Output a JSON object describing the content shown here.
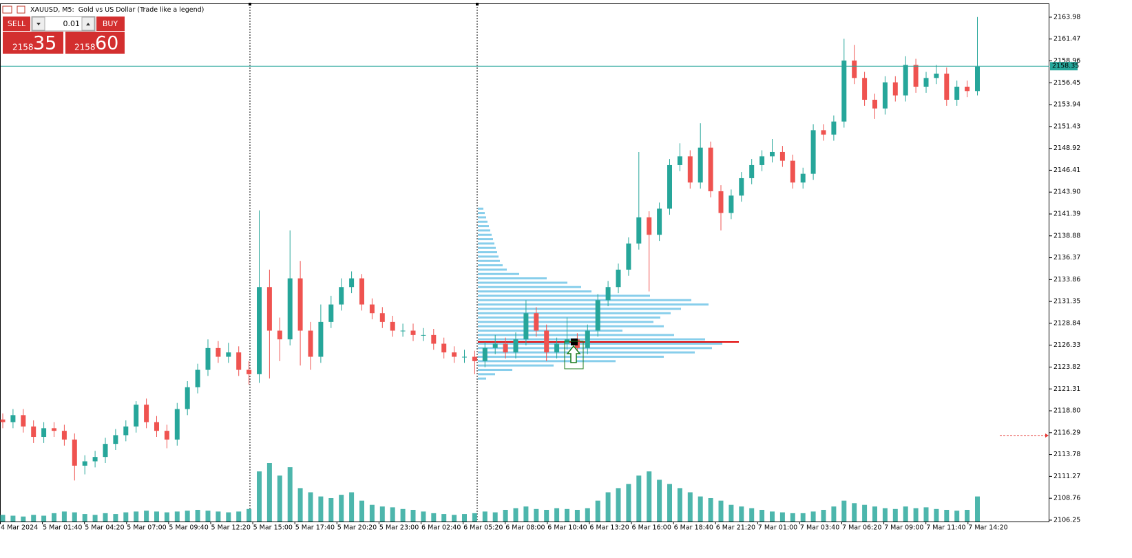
{
  "chart_data": {
    "type": "candlestick",
    "title": "XAUUSD, M5:  Gold vs US Dollar (Trade like a legend)",
    "trade_panel": {
      "sell": "SELL",
      "buy": "BUY",
      "lot": "0.01",
      "bid": {
        "main": "2158",
        "pips": "35"
      },
      "ask": {
        "main": "2158",
        "pips": "60"
      }
    },
    "categories": [
      "4 Mar 2024",
      "5 Mar 01:40",
      "5 Mar 04:20",
      "5 Mar 07:00",
      "5 Mar 09:40",
      "5 Mar 12:20",
      "5 Mar 15:00",
      "5 Mar 17:40",
      "5 Mar 20:20",
      "5 Mar 23:00",
      "6 Mar 02:40",
      "6 Mar 05:20",
      "6 Mar 08:00",
      "6 Mar 10:40",
      "6 Mar 13:20",
      "6 Mar 16:00",
      "6 Mar 18:40",
      "6 Mar 21:20",
      "7 Mar 01:00",
      "7 Mar 03:40",
      "7 Mar 06:20",
      "7 Mar 09:00",
      "7 Mar 11:40",
      "7 Mar 14:20"
    ],
    "up_color": "#26a69a",
    "down_color": "#ef5350",
    "volume_color": "#4db6ac",
    "ylim": [
      2105.93,
      2165.95
    ],
    "yticks": [
      2163.98,
      2161.47,
      2158.96,
      2156.45,
      2153.94,
      2151.43,
      2148.92,
      2146.41,
      {
        "value": 2143.9,
        "label": "2143.90"
      },
      2141.39,
      2138.88,
      2136.37,
      2133.86,
      2131.35,
      2128.84,
      2126.33,
      2123.82,
      2121.31,
      {
        "value": 2118.8,
        "label": "2118.80"
      },
      2116.29,
      2113.78,
      2111.27,
      2108.76,
      2106.25
    ],
    "current_price": 2158.35,
    "open": [
      2117.8,
      2117.5,
      2118.3,
      2117,
      2115.8,
      2116.8,
      2116.5,
      2115.5,
      2112.5,
      2113,
      2113.5,
      2115,
      2116,
      2117,
      2119.5,
      2117.5,
      2116.5,
      2115.5,
      2119,
      2121.5,
      2123.5,
      2126,
      2125,
      2125.5,
      2123.5,
      2123,
      2133,
      2128,
      2127,
      2134,
      2128,
      2125,
      2129,
      2131,
      2133,
      2134,
      2131,
      2130,
      2129,
      2128,
      2128,
      2127.5,
      2127.5,
      2126.5,
      2125.5,
      2125,
      2125,
      2124.5,
      2126,
      2126.5,
      2125.5,
      2127,
      2130,
      2128,
      2125.5,
      2126.5,
      2127,
      2126,
      2128,
      2131.5,
      2133,
      2135,
      2138,
      2141,
      2139,
      2142,
      2147,
      2148,
      2145,
      2149,
      2144,
      2141.5,
      2143.5,
      2145.5,
      2147,
      2148,
      2148.5,
      2147.5,
      2145,
      2146,
      2151,
      2150.5,
      2152,
      2159,
      2157,
      2154.5,
      2153.5,
      2156.5,
      2155,
      2158.5,
      2156,
      2157,
      2157.5,
      2154.5,
      2156,
      2155.5
    ],
    "high": [
      2118.5,
      2119,
      2119,
      2117.7,
      2117.5,
      2117.5,
      2117.2,
      2116.2,
      2113.7,
      2114.2,
      2115.7,
      2116.7,
      2117.7,
      2119.9,
      2120.2,
      2118.2,
      2117.2,
      2119.7,
      2122.2,
      2124.2,
      2127,
      2126.8,
      2126.6,
      2126.2,
      2124.5,
      2141.8,
      2135,
      2129.5,
      2139.5,
      2136,
      2129,
      2131,
      2132,
      2134,
      2134.8,
      2134.5,
      2131.7,
      2130.7,
      2129.7,
      2128.8,
      2128.8,
      2128.3,
      2128.2,
      2127.2,
      2126.2,
      2125.8,
      2125.7,
      2126.7,
      2127.5,
      2127.2,
      2127.8,
      2131.5,
      2130.7,
      2128.7,
      2127.2,
      2129.5,
      2127.7,
      2128.7,
      2132.2,
      2133.7,
      2135.7,
      2138.7,
      2148.5,
      2141.7,
      2142.7,
      2147.7,
      2149.5,
      2148.7,
      2151.8,
      2149.7,
      2144.7,
      2144.2,
      2146.2,
      2147.7,
      2148.7,
      2150,
      2149.2,
      2148.2,
      2146.7,
      2151.7,
      2151.7,
      2152.7,
      2161.5,
      2160.8,
      2157.7,
      2155.2,
      2157.2,
      2157.2,
      2159.5,
      2159.2,
      2157.7,
      2158.5,
      2158.2,
      2156.7,
      2156.7,
      2164
    ],
    "low": [
      2116.8,
      2116.8,
      2116.3,
      2115.1,
      2115.1,
      2115.8,
      2114.8,
      2110.8,
      2111.5,
      2112.3,
      2112.8,
      2114.3,
      2115.3,
      2116.3,
      2116.8,
      2115.8,
      2114.5,
      2114.8,
      2118.3,
      2120.8,
      2122.8,
      2124.3,
      2124.3,
      2122.8,
      2121.8,
      2122,
      2122.5,
      2124.5,
      2126.3,
      2124,
      2123.5,
      2124.3,
      2128.3,
      2130.3,
      2132.3,
      2130.3,
      2129.3,
      2128.3,
      2127.3,
      2127.3,
      2126.8,
      2126.8,
      2125.8,
      2124.8,
      2124.3,
      2124.3,
      2123,
      2123.8,
      2125.3,
      2124.8,
      2124.8,
      2126.3,
      2127.3,
      2124.5,
      2124.8,
      2125.8,
      2125.3,
      2125.3,
      2127.3,
      2130.8,
      2132.3,
      2134.3,
      2137.3,
      2132.5,
      2138.3,
      2141.3,
      2146.3,
      2144.3,
      2144.3,
      2143.3,
      2139.5,
      2140.8,
      2142.8,
      2144.8,
      2146.3,
      2147.3,
      2146.8,
      2144.3,
      2144.3,
      2145.3,
      2149.8,
      2149.8,
      2151.3,
      2156.3,
      2153.8,
      2152.3,
      2152.8,
      2154.3,
      2154.3,
      2155.3,
      2155.3,
      2156.3,
      2153.8,
      2153.8,
      2154.8,
      2155
    ],
    "close": [
      2117.5,
      2118.3,
      2117,
      2115.8,
      2116.8,
      2116.5,
      2115.5,
      2112.5,
      2113,
      2113.5,
      2115,
      2116,
      2117,
      2119.5,
      2117.5,
      2116.5,
      2115.5,
      2119,
      2121.5,
      2123.5,
      2126,
      2125,
      2125.5,
      2123.5,
      2123,
      2133,
      2128,
      2127,
      2134,
      2128,
      2125,
      2129,
      2131,
      2133,
      2134,
      2131,
      2130,
      2129,
      2128,
      2128,
      2127.5,
      2127.5,
      2126.5,
      2125.5,
      2125,
      2125,
      2124.5,
      2126,
      2126.5,
      2125.5,
      2127,
      2130,
      2128,
      2125.5,
      2126.5,
      2127,
      2126,
      2128,
      2131.5,
      2133,
      2135,
      2138,
      2141,
      2139,
      2142,
      2147,
      2148,
      2145,
      2149,
      2144,
      2141.5,
      2143.5,
      2145.5,
      2147,
      2148,
      2148.5,
      2147.5,
      2145,
      2146,
      2151,
      2150.5,
      2152,
      2159,
      2157,
      2154.5,
      2153.5,
      2156.5,
      2155,
      2158.5,
      2156,
      2157,
      2157.5,
      2154.5,
      2156,
      2155.5,
      2158.3
    ],
    "volume": [
      8,
      7,
      6,
      8,
      7,
      10,
      12,
      11,
      9,
      8,
      10,
      9,
      11,
      12,
      13,
      12,
      11,
      12,
      13,
      14,
      13,
      12,
      11,
      12,
      15,
      60,
      70,
      55,
      65,
      40,
      35,
      30,
      28,
      32,
      35,
      25,
      20,
      18,
      17,
      15,
      14,
      12,
      10,
      9,
      8,
      9,
      10,
      12,
      11,
      14,
      16,
      18,
      15,
      14,
      16,
      15,
      14,
      16,
      25,
      35,
      40,
      45,
      55,
      60,
      50,
      45,
      40,
      35,
      30,
      28,
      25,
      20,
      18,
      16,
      14,
      12,
      11,
      10,
      10,
      12,
      14,
      18,
      25,
      22,
      20,
      18,
      16,
      15,
      18,
      16,
      17,
      15,
      14,
      13,
      14,
      30
    ],
    "profile": {
      "color": "#87ceeb",
      "poc_color": "#e00000",
      "poc": 2126.7,
      "prices": [
        2142,
        2141.5,
        2141,
        2140.5,
        2140,
        2139.5,
        2139,
        2138.5,
        2138,
        2137.5,
        2137,
        2136.5,
        2136,
        2135.5,
        2135,
        2134.5,
        2134,
        2133.5,
        2133,
        2132.5,
        2132,
        2131.5,
        2131,
        2130.5,
        2130,
        2129.5,
        2129,
        2128.5,
        2128,
        2127.5,
        2127,
        2126.5,
        2126,
        2125.5,
        2125,
        2124.5,
        2124,
        2123.5,
        2123,
        2122.5
      ],
      "values": [
        8,
        10,
        12,
        14,
        16,
        18,
        20,
        22,
        24,
        26,
        28,
        30,
        32,
        36,
        42,
        60,
        100,
        130,
        150,
        165,
        250,
        310,
        335,
        295,
        280,
        265,
        255,
        270,
        210,
        285,
        330,
        355,
        340,
        315,
        270,
        200,
        110,
        50,
        25,
        12
      ]
    }
  }
}
